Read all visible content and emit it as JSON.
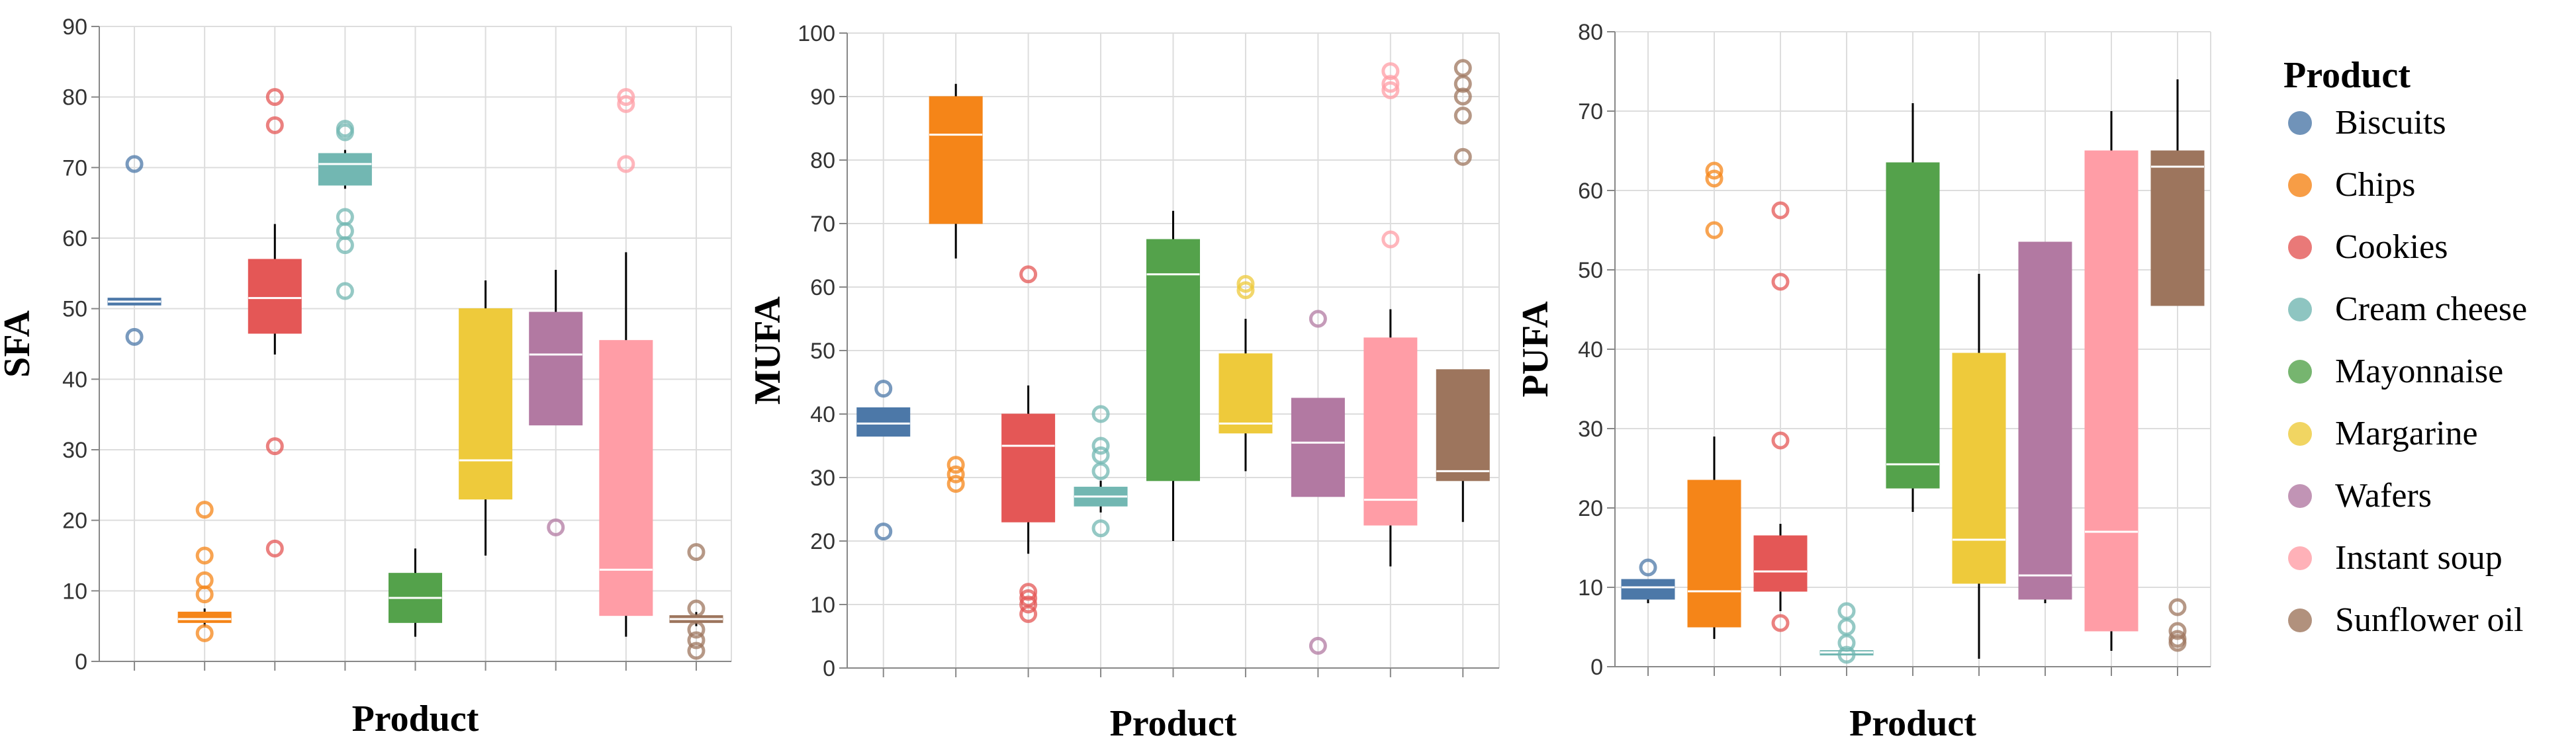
{
  "legend": {
    "title": "Product",
    "entries": [
      {
        "label": "Biscuits",
        "color": "#4c78a8"
      },
      {
        "label": "Chips",
        "color": "#f58518"
      },
      {
        "label": "Cookies",
        "color": "#e45756"
      },
      {
        "label": "Cream cheese",
        "color": "#72b7b2"
      },
      {
        "label": "Mayonnaise",
        "color": "#54a24b"
      },
      {
        "label": "Margarine",
        "color": "#eeca3b"
      },
      {
        "label": "Wafers",
        "color": "#b279a2"
      },
      {
        "label": "Instant soup",
        "color": "#ff9da6"
      },
      {
        "label": "Sunflower oil",
        "color": "#9d755d"
      }
    ]
  },
  "chart_data": [
    {
      "type": "box",
      "xlabel": "Product",
      "ylabel": "SFA",
      "ylim": [
        0,
        90
      ],
      "yticks": [
        0,
        10,
        20,
        30,
        40,
        50,
        60,
        70,
        80,
        90
      ],
      "grid": true,
      "categories": [
        "Biscuits",
        "Chips",
        "Cookies",
        "Cream cheese",
        "Mayonnaise",
        "Margarine",
        "Wafers",
        "Instant soup",
        "Sunflower oil"
      ],
      "series": [
        {
          "name": "Biscuits",
          "min": 50.5,
          "q1": 50.5,
          "median": 51,
          "q3": 51.5,
          "max": 51.5,
          "outliers": [
            70.5,
            46
          ]
        },
        {
          "name": "Chips",
          "min": 5,
          "q1": 5.5,
          "median": 6,
          "q3": 7,
          "max": 7.5,
          "outliers": [
            21.5,
            15,
            11.5,
            9.5,
            4
          ]
        },
        {
          "name": "Cookies",
          "min": 43.5,
          "q1": 46.5,
          "median": 51.5,
          "q3": 57,
          "max": 62,
          "outliers": [
            80,
            76,
            30.5,
            16
          ]
        },
        {
          "name": "Cream cheese",
          "min": 67,
          "q1": 67.5,
          "median": 70.5,
          "q3": 72,
          "max": 72.5,
          "outliers": [
            75.5,
            75,
            63,
            61,
            59,
            52.5
          ]
        },
        {
          "name": "Mayonnaise",
          "min": 3.5,
          "q1": 5.5,
          "median": 9,
          "q3": 12.5,
          "max": 16,
          "outliers": []
        },
        {
          "name": "Margarine",
          "min": 15,
          "q1": 23,
          "median": 28.5,
          "q3": 50,
          "max": 54,
          "outliers": []
        },
        {
          "name": "Wafers",
          "min": 33.5,
          "q1": 33.5,
          "median": 43.5,
          "q3": 49.5,
          "max": 55.5,
          "outliers": [
            19
          ]
        },
        {
          "name": "Instant soup",
          "min": 3.5,
          "q1": 6.5,
          "median": 13,
          "q3": 45.5,
          "max": 58,
          "outliers": [
            80,
            79,
            70.5
          ]
        },
        {
          "name": "Sunflower oil",
          "min": 5,
          "q1": 5.5,
          "median": 6,
          "q3": 6.5,
          "max": 7,
          "outliers": [
            15.5,
            7.5,
            4.5,
            3,
            1.5
          ]
        }
      ]
    },
    {
      "type": "box",
      "xlabel": "Product",
      "ylabel": "MUFA",
      "ylim": [
        0,
        100
      ],
      "yticks": [
        0,
        10,
        20,
        30,
        40,
        50,
        60,
        70,
        80,
        90,
        100
      ],
      "grid": true,
      "categories": [
        "Biscuits",
        "Chips",
        "Cookies",
        "Cream cheese",
        "Mayonnaise",
        "Margarine",
        "Wafers",
        "Instant soup",
        "Sunflower oil"
      ],
      "series": [
        {
          "name": "Biscuits",
          "min": 36.5,
          "q1": 36.5,
          "median": 38.5,
          "q3": 41,
          "max": 41,
          "outliers": [
            44,
            21.5
          ]
        },
        {
          "name": "Chips",
          "min": 64.5,
          "q1": 70,
          "median": 84,
          "q3": 90,
          "max": 92,
          "outliers": [
            32,
            30.5,
            29
          ]
        },
        {
          "name": "Cookies",
          "min": 18,
          "q1": 23,
          "median": 35,
          "q3": 40,
          "max": 44.5,
          "outliers": [
            62,
            12,
            11,
            10,
            8.5
          ]
        },
        {
          "name": "Cream cheese",
          "min": 24.5,
          "q1": 25.5,
          "median": 27,
          "q3": 28.5,
          "max": 29.5,
          "outliers": [
            40,
            35,
            33.5,
            31,
            22
          ]
        },
        {
          "name": "Mayonnaise",
          "min": 20,
          "q1": 29.5,
          "median": 62,
          "q3": 67.5,
          "max": 72,
          "outliers": []
        },
        {
          "name": "Margarine",
          "min": 31,
          "q1": 37,
          "median": 38.5,
          "q3": 49.5,
          "max": 55,
          "outliers": [
            60.5,
            59.5
          ]
        },
        {
          "name": "Wafers",
          "min": 27,
          "q1": 27,
          "median": 35.5,
          "q3": 42.5,
          "max": 42.5,
          "outliers": [
            55,
            3.5
          ]
        },
        {
          "name": "Instant soup",
          "min": 16,
          "q1": 22.5,
          "median": 26.5,
          "q3": 52,
          "max": 56.5,
          "outliers": [
            94,
            92,
            91,
            67.5
          ]
        },
        {
          "name": "Sunflower oil",
          "min": 23,
          "q1": 29.5,
          "median": 31,
          "q3": 47,
          "max": 47,
          "outliers": [
            94.5,
            92,
            90,
            87,
            80.5
          ]
        }
      ]
    },
    {
      "type": "box",
      "xlabel": "Product",
      "ylabel": "PUFA",
      "ylim": [
        0,
        80
      ],
      "yticks": [
        0,
        10,
        20,
        30,
        40,
        50,
        60,
        70,
        80
      ],
      "grid": true,
      "categories": [
        "Biscuits",
        "Chips",
        "Cookies",
        "Cream cheese",
        "Mayonnaise",
        "Margarine",
        "Wafers",
        "Instant soup",
        "Sunflower oil"
      ],
      "series": [
        {
          "name": "Biscuits",
          "min": 8,
          "q1": 8.5,
          "median": 10,
          "q3": 11,
          "max": 11,
          "outliers": [
            12.5
          ]
        },
        {
          "name": "Chips",
          "min": 3.5,
          "q1": 5,
          "median": 9.5,
          "q3": 23.5,
          "max": 29,
          "outliers": [
            62.5,
            61.5,
            55
          ]
        },
        {
          "name": "Cookies",
          "min": 7,
          "q1": 9.5,
          "median": 12,
          "q3": 16.5,
          "max": 18,
          "outliers": [
            57.5,
            48.5,
            28.5,
            5.5
          ]
        },
        {
          "name": "Cream cheese",
          "min": 1.5,
          "q1": 1.5,
          "median": 1.8,
          "q3": 2,
          "max": 2,
          "outliers": [
            7,
            5,
            3,
            1.5
          ]
        },
        {
          "name": "Mayonnaise",
          "min": 19.5,
          "q1": 22.5,
          "median": 25.5,
          "q3": 63.5,
          "max": 71,
          "outliers": []
        },
        {
          "name": "Margarine",
          "min": 1,
          "q1": 10.5,
          "median": 16,
          "q3": 39.5,
          "max": 49.5,
          "outliers": []
        },
        {
          "name": "Wafers",
          "min": 8,
          "q1": 8.5,
          "median": 11.5,
          "q3": 53.5,
          "max": 53.5,
          "outliers": []
        },
        {
          "name": "Instant soup",
          "min": 2,
          "q1": 4.5,
          "median": 17,
          "q3": 65,
          "max": 70,
          "outliers": []
        },
        {
          "name": "Sunflower oil",
          "min": 45.5,
          "q1": 45.5,
          "median": 63,
          "q3": 65,
          "max": 74,
          "outliers": [
            7.5,
            4.5,
            3.5,
            3
          ]
        }
      ]
    }
  ]
}
